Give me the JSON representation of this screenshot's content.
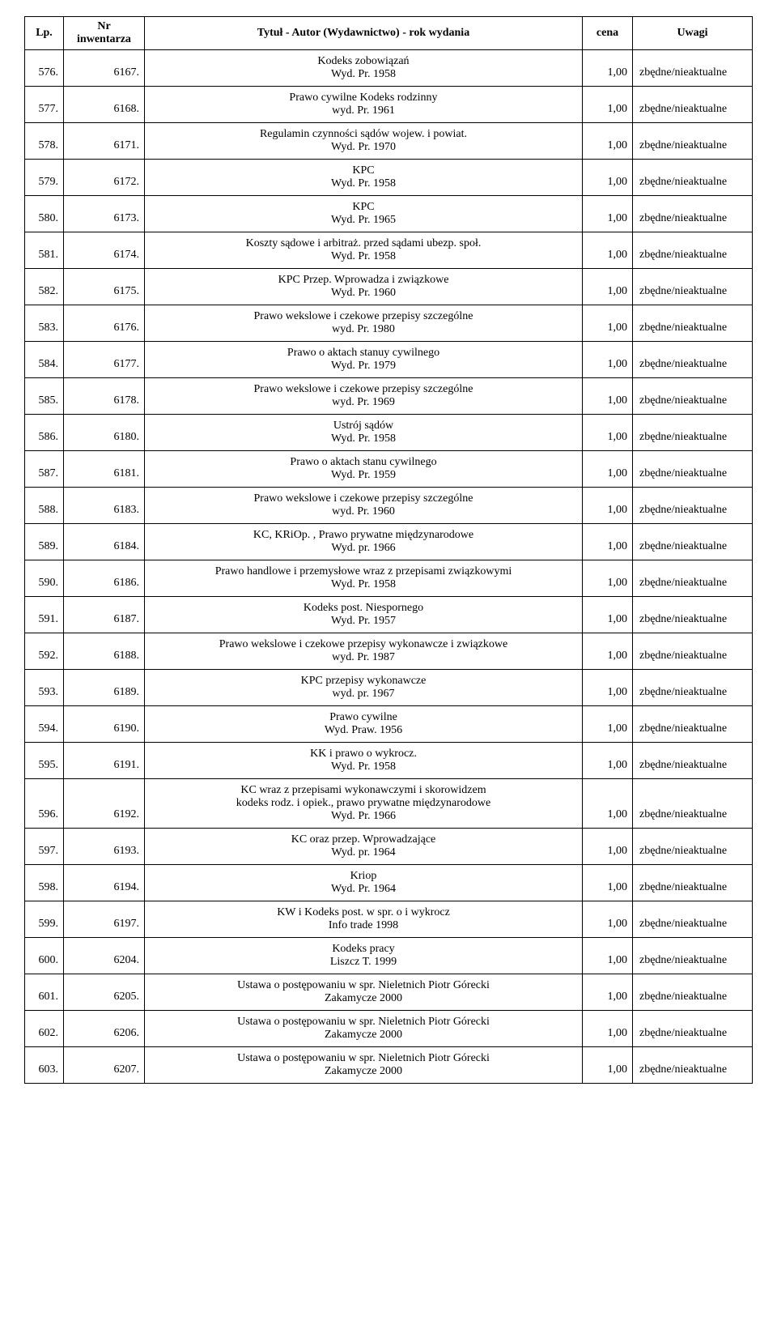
{
  "headers": {
    "lp": "Lp.",
    "nr_line1": "Nr",
    "nr_line2": "inwentarza",
    "title": "Tytuł - Autor (Wydawnictwo) - rok wydania",
    "cena": "cena",
    "uwagi": "Uwagi"
  },
  "rows": [
    {
      "lp": "576.",
      "nr": "6167.",
      "t1": "Kodeks zobowiązań",
      "t2": "Wyd. Pr. 1958",
      "t3": "",
      "cena": "1,00",
      "uwagi": "zbędne/nieaktualne"
    },
    {
      "lp": "577.",
      "nr": "6168.",
      "t1": "Prawo cywilne Kodeks rodzinny",
      "t2": "wyd. Pr. 1961",
      "t3": "",
      "cena": "1,00",
      "uwagi": "zbędne/nieaktualne"
    },
    {
      "lp": "578.",
      "nr": "6171.",
      "t1": "Regulamin czynności sądów wojew. i powiat.",
      "t2": "Wyd. Pr. 1970",
      "t3": "",
      "cena": "1,00",
      "uwagi": "zbędne/nieaktualne"
    },
    {
      "lp": "579.",
      "nr": "6172.",
      "t1": "KPC",
      "t2": "Wyd. Pr. 1958",
      "t3": "",
      "cena": "1,00",
      "uwagi": "zbędne/nieaktualne"
    },
    {
      "lp": "580.",
      "nr": "6173.",
      "t1": "KPC",
      "t2": "Wyd. Pr. 1965",
      "t3": "",
      "cena": "1,00",
      "uwagi": "zbędne/nieaktualne"
    },
    {
      "lp": "581.",
      "nr": "6174.",
      "t1": "Koszty sądowe i arbitraż. przed sądami ubezp. społ.",
      "t2": "Wyd. Pr. 1958",
      "t3": "",
      "cena": "1,00",
      "uwagi": "zbędne/nieaktualne"
    },
    {
      "lp": "582.",
      "nr": "6175.",
      "t1": "KPC Przep. Wprowadza i związkowe",
      "t2": "Wyd. Pr. 1960",
      "t3": "",
      "cena": "1,00",
      "uwagi": "zbędne/nieaktualne"
    },
    {
      "lp": "583.",
      "nr": "6176.",
      "t1": "Prawo wekslowe i czekowe przepisy szczególne",
      "t2": "wyd. Pr. 1980",
      "t3": "",
      "cena": "1,00",
      "uwagi": "zbędne/nieaktualne"
    },
    {
      "lp": "584.",
      "nr": "6177.",
      "t1": "Prawo o aktach stanuy cywilnego",
      "t2": "Wyd. Pr. 1979",
      "t3": "",
      "cena": "1,00",
      "uwagi": "zbędne/nieaktualne"
    },
    {
      "lp": "585.",
      "nr": "6178.",
      "t1": "Prawo wekslowe i czekowe przepisy szczególne",
      "t2": "wyd. Pr. 1969",
      "t3": "",
      "cena": "1,00",
      "uwagi": "zbędne/nieaktualne"
    },
    {
      "lp": "586.",
      "nr": "6180.",
      "t1": "Ustrój sądów",
      "t2": "Wyd. Pr. 1958",
      "t3": "",
      "cena": "1,00",
      "uwagi": "zbędne/nieaktualne"
    },
    {
      "lp": "587.",
      "nr": "6181.",
      "t1": "Prawo o aktach stanu cywilnego",
      "t2": "Wyd. Pr. 1959",
      "t3": "",
      "cena": "1,00",
      "uwagi": "zbędne/nieaktualne"
    },
    {
      "lp": "588.",
      "nr": "6183.",
      "t1": "Prawo wekslowe i czekowe przepisy szczególne",
      "t2": "wyd. Pr. 1960",
      "t3": "",
      "cena": "1,00",
      "uwagi": "zbędne/nieaktualne"
    },
    {
      "lp": "589.",
      "nr": "6184.",
      "t1": "KC, KRiOp. , Prawo prywatne międzynarodowe",
      "t2": "Wyd. pr. 1966",
      "t3": "",
      "cena": "1,00",
      "uwagi": "zbędne/nieaktualne"
    },
    {
      "lp": "590.",
      "nr": "6186.",
      "t1": "Prawo handlowe i przemysłowe wraz z przepisami związkowymi",
      "t2": "Wyd. Pr. 1958",
      "t3": "",
      "cena": "1,00",
      "uwagi": "zbędne/nieaktualne"
    },
    {
      "lp": "591.",
      "nr": "6187.",
      "t1": "Kodeks post. Niespornego",
      "t2": "Wyd. Pr. 1957",
      "t3": "",
      "cena": "1,00",
      "uwagi": "zbędne/nieaktualne"
    },
    {
      "lp": "592.",
      "nr": "6188.",
      "t1": "Prawo wekslowe i czekowe przepisy wykonawcze i związkowe",
      "t2": "wyd. Pr. 1987",
      "t3": "",
      "cena": "1,00",
      "uwagi": "zbędne/nieaktualne"
    },
    {
      "lp": "593.",
      "nr": "6189.",
      "t1": "KPC przepisy wykonawcze",
      "t2": "wyd. pr. 1967",
      "t3": "",
      "cena": "1,00",
      "uwagi": "zbędne/nieaktualne"
    },
    {
      "lp": "594.",
      "nr": "6190.",
      "t1": "Prawo cywilne",
      "t2": "Wyd. Praw. 1956",
      "t3": "",
      "cena": "1,00",
      "uwagi": "zbędne/nieaktualne"
    },
    {
      "lp": "595.",
      "nr": "6191.",
      "t1": "KK i prawo o wykrocz.",
      "t2": "Wyd. Pr. 1958",
      "t3": "",
      "cena": "1,00",
      "uwagi": "zbędne/nieaktualne"
    },
    {
      "lp": "596.",
      "nr": "6192.",
      "t1": "KC wraz z przepisami wykonawczymi i skorowidzem",
      "t2": "kodeks rodz. i opiek.,  prawo prywatne międzynarodowe",
      "t3": "Wyd. Pr. 1966",
      "cena": "1,00",
      "uwagi": "zbędne/nieaktualne"
    },
    {
      "lp": "597.",
      "nr": "6193.",
      "t1": "KC oraz przep. Wprowadzające",
      "t2": "Wyd. pr. 1964",
      "t3": "",
      "cena": "1,00",
      "uwagi": "zbędne/nieaktualne"
    },
    {
      "lp": "598.",
      "nr": "6194.",
      "t1": "Kriop",
      "t2": "Wyd. Pr. 1964",
      "t3": "",
      "cena": "1,00",
      "uwagi": "zbędne/nieaktualne"
    },
    {
      "lp": "599.",
      "nr": "6197.",
      "t1": "KW i Kodeks post. w spr. o i wykrocz",
      "t2": "Info trade 1998",
      "t3": "",
      "cena": "1,00",
      "uwagi": "zbędne/nieaktualne"
    },
    {
      "lp": "600.",
      "nr": "6204.",
      "t1": "Kodeks pracy",
      "t2": "Liszcz T. 1999",
      "t3": "",
      "cena": "1,00",
      "uwagi": "zbędne/nieaktualne"
    },
    {
      "lp": "601.",
      "nr": "6205.",
      "t1": "Ustawa o postępowaniu w spr. Nieletnich Piotr Górecki",
      "t2": "Zakamycze 2000",
      "t3": "",
      "cena": "1,00",
      "uwagi": "zbędne/nieaktualne"
    },
    {
      "lp": "602.",
      "nr": "6206.",
      "t1": "Ustawa o postępowaniu w spr. Nieletnich Piotr Górecki",
      "t2": "Zakamycze 2000",
      "t3": "",
      "cena": "1,00",
      "uwagi": "zbędne/nieaktualne"
    },
    {
      "lp": "603.",
      "nr": "6207.",
      "t1": "Ustawa o postępowaniu w spr. Nieletnich Piotr Górecki",
      "t2": "Zakamycze 2000",
      "t3": "",
      "cena": "1,00",
      "uwagi": "zbędne/nieaktualne"
    }
  ]
}
